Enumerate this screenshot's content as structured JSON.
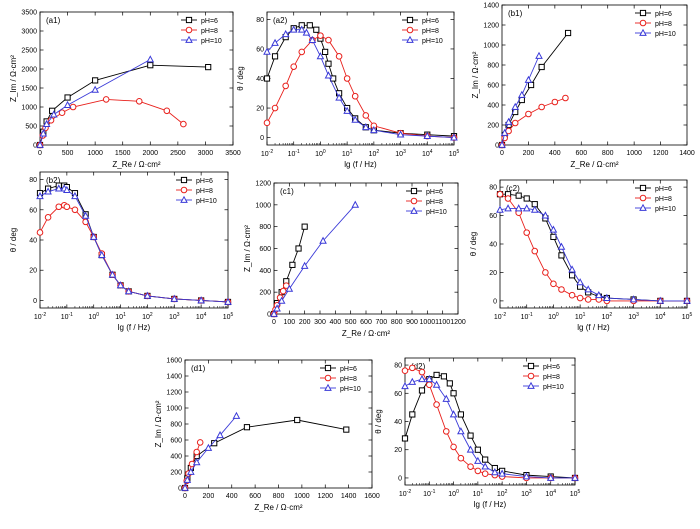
{
  "colors": {
    "pH6": "#000000",
    "pH8": "#e8201c",
    "pH10": "#3a3ad8",
    "axis": "#000000"
  },
  "legend_labels": [
    "pH=6",
    "pH=8",
    "pH=10"
  ],
  "chart_data": [
    {
      "id": "a1",
      "type": "line",
      "panel_label": "(a1)",
      "xlabel": "Z_Re / Ω·cm²",
      "ylabel": "Z_Im / Ω·cm²",
      "xlim": [
        0,
        3500
      ],
      "ylim": [
        0,
        3500
      ],
      "xticks": [
        0,
        500,
        1000,
        1500,
        2000,
        2500,
        3000,
        3500
      ],
      "yticks": [
        0,
        500,
        1000,
        1500,
        2000,
        2500,
        3000,
        3500
      ],
      "series": [
        {
          "name": "pH=6",
          "x": [
            0,
            60,
            120,
            220,
            500,
            1000,
            2000,
            3050
          ],
          "y": [
            0,
            350,
            620,
            900,
            1250,
            1700,
            2100,
            2050
          ]
        },
        {
          "name": "pH=8",
          "x": [
            0,
            50,
            100,
            200,
            400,
            600,
            1200,
            1800,
            2300,
            2600
          ],
          "y": [
            0,
            250,
            450,
            650,
            850,
            1000,
            1200,
            1150,
            900,
            550
          ]
        },
        {
          "name": "pH=10",
          "x": [
            0,
            60,
            120,
            250,
            500,
            1000,
            2000
          ],
          "y": [
            0,
            300,
            550,
            800,
            1050,
            1450,
            2250
          ]
        }
      ]
    },
    {
      "id": "a2",
      "type": "line",
      "xscale": "log",
      "panel_label": "(a2)",
      "xlabel": "lg (f / Hz)",
      "ylabel": "θ / deg",
      "xlim": [
        0.01,
        100000
      ],
      "ylim": [
        -5,
        85
      ],
      "xticks": [
        0.01,
        0.1,
        1,
        10,
        100,
        1000,
        10000,
        100000
      ],
      "yticks": [
        0,
        20,
        40,
        60,
        80
      ],
      "series": [
        {
          "name": "pH=6",
          "x": [
            0.01,
            0.02,
            0.05,
            0.1,
            0.2,
            0.4,
            0.7,
            1,
            1.5,
            2,
            3,
            5,
            10,
            20,
            50,
            100,
            1000,
            10000,
            100000
          ],
          "y": [
            40,
            55,
            68,
            74,
            76,
            76,
            73,
            67,
            58,
            50,
            40,
            30,
            20,
            13,
            7,
            5,
            3,
            2,
            1
          ]
        },
        {
          "name": "pH=8",
          "x": [
            0.01,
            0.02,
            0.05,
            0.1,
            0.2,
            0.5,
            1,
            2,
            5,
            10,
            20,
            50,
            100,
            1000,
            10000,
            100000
          ],
          "y": [
            10,
            20,
            35,
            48,
            58,
            66,
            69,
            66,
            55,
            40,
            28,
            15,
            8,
            3,
            1,
            0
          ]
        },
        {
          "name": "pH=10",
          "x": [
            0.01,
            0.02,
            0.05,
            0.1,
            0.2,
            0.3,
            0.5,
            1,
            2,
            5,
            10,
            20,
            50,
            100,
            1000,
            10000,
            100000
          ],
          "y": [
            58,
            64,
            70,
            73,
            73,
            71,
            66,
            55,
            42,
            27,
            18,
            12,
            7,
            5,
            2,
            1,
            0
          ]
        }
      ]
    },
    {
      "id": "b1",
      "type": "line",
      "panel_label": "(b1)",
      "xlabel": "Z_Re / Ω·cm²",
      "ylabel": "Z_Im / Ω·cm²",
      "xlim": [
        0,
        1400
      ],
      "ylim": [
        0,
        1400
      ],
      "xticks": [
        0,
        200,
        400,
        600,
        800,
        1000,
        1200,
        1400
      ],
      "yticks": [
        0,
        200,
        400,
        600,
        800,
        1000,
        1200,
        1400
      ],
      "series": [
        {
          "name": "pH=6",
          "x": [
            0,
            20,
            50,
            100,
            150,
            220,
            300,
            500
          ],
          "y": [
            0,
            100,
            200,
            330,
            450,
            600,
            780,
            1120
          ]
        },
        {
          "name": "pH=8",
          "x": [
            0,
            20,
            50,
            100,
            200,
            300,
            400,
            480
          ],
          "y": [
            0,
            70,
            140,
            220,
            310,
            380,
            430,
            470
          ]
        },
        {
          "name": "pH=10",
          "x": [
            0,
            20,
            50,
            100,
            150,
            200,
            280
          ],
          "y": [
            0,
            120,
            230,
            380,
            500,
            650,
            890
          ]
        }
      ]
    },
    {
      "id": "b2",
      "type": "line",
      "xscale": "log",
      "panel_label": "(b2)",
      "xlabel": "lg (f / Hz)",
      "ylabel": "θ / deg",
      "xlim": [
        0.01,
        100000
      ],
      "ylim": [
        -5,
        85
      ],
      "xticks": [
        0.01,
        0.1,
        1,
        10,
        100,
        1000,
        10000,
        100000
      ],
      "yticks": [
        0,
        20,
        40,
        60,
        80
      ],
      "series": [
        {
          "name": "pH=6",
          "x": [
            0.01,
            0.02,
            0.05,
            0.08,
            0.1,
            0.2,
            0.5,
            1,
            2,
            5,
            10,
            20,
            100,
            1000,
            10000,
            100000
          ],
          "y": [
            71,
            74,
            76,
            76,
            75,
            71,
            57,
            42,
            30,
            17,
            10,
            6,
            3,
            1,
            0,
            -1
          ]
        },
        {
          "name": "pH=8",
          "x": [
            0.01,
            0.02,
            0.05,
            0.08,
            0.1,
            0.2,
            0.5,
            1,
            2,
            5,
            10,
            20,
            100,
            1000,
            10000,
            100000
          ],
          "y": [
            45,
            55,
            62,
            63,
            62,
            60,
            52,
            42,
            31,
            17,
            10,
            6,
            3,
            1,
            0,
            -1
          ]
        },
        {
          "name": "pH=10",
          "x": [
            0.01,
            0.02,
            0.05,
            0.08,
            0.1,
            0.2,
            0.5,
            1,
            2,
            5,
            10,
            20,
            100,
            1000,
            10000,
            100000
          ],
          "y": [
            69,
            72,
            74,
            74,
            73,
            69,
            56,
            42,
            30,
            17,
            10,
            6,
            3,
            1,
            0,
            -1
          ]
        }
      ]
    },
    {
      "id": "c1",
      "type": "line",
      "panel_label": "(c1)",
      "xlabel": "Z_Re / Ω·cm²",
      "ylabel": "Z_Im / Ω·cm²",
      "xlim": [
        0,
        1200
      ],
      "ylim": [
        0,
        1200
      ],
      "xticks": [
        0,
        100,
        200,
        300,
        400,
        500,
        600,
        700,
        800,
        900,
        1000,
        1100,
        1200
      ],
      "yticks": [
        0,
        200,
        400,
        600,
        800,
        1000,
        1200
      ],
      "series": [
        {
          "name": "pH=6",
          "x": [
            0,
            20,
            50,
            80,
            120,
            160,
            200
          ],
          "y": [
            0,
            100,
            200,
            300,
            450,
            600,
            800
          ]
        },
        {
          "name": "pH=8",
          "x": [
            0,
            10,
            20,
            40,
            60,
            80
          ],
          "y": [
            0,
            40,
            80,
            150,
            210,
            260
          ]
        },
        {
          "name": "pH=10",
          "x": [
            0,
            20,
            50,
            100,
            200,
            320,
            530
          ],
          "y": [
            0,
            50,
            120,
            230,
            440,
            670,
            1000
          ]
        }
      ]
    },
    {
      "id": "c2",
      "type": "line",
      "xscale": "log",
      "panel_label": "(c2)",
      "xlabel": "lg (f / Hz)",
      "ylabel": "θ / deg",
      "xlim": [
        0.01,
        100000
      ],
      "ylim": [
        -5,
        85
      ],
      "xticks": [
        0.01,
        0.1,
        1,
        10,
        100,
        1000,
        10000,
        100000
      ],
      "yticks": [
        0,
        20,
        40,
        60,
        80
      ],
      "series": [
        {
          "name": "pH=6",
          "x": [
            0.01,
            0.02,
            0.05,
            0.1,
            0.2,
            0.5,
            1,
            2,
            5,
            10,
            20,
            50,
            100,
            1000,
            10000,
            100000
          ],
          "y": [
            75,
            75,
            74,
            72,
            68,
            58,
            45,
            32,
            18,
            10,
            6,
            3,
            2,
            1,
            0,
            0
          ]
        },
        {
          "name": "pH=8",
          "x": [
            0.01,
            0.02,
            0.05,
            0.1,
            0.2,
            0.5,
            1,
            2,
            5,
            10,
            20,
            50,
            100,
            1000,
            10000,
            100000
          ],
          "y": [
            75,
            72,
            62,
            48,
            35,
            20,
            12,
            8,
            4,
            2,
            1,
            1,
            0,
            0,
            0,
            0
          ]
        },
        {
          "name": "pH=10",
          "x": [
            0.01,
            0.02,
            0.05,
            0.1,
            0.2,
            0.5,
            1,
            2,
            5,
            10,
            20,
            50,
            100,
            1000,
            10000,
            100000
          ],
          "y": [
            64,
            65,
            65,
            65,
            64,
            60,
            50,
            38,
            22,
            13,
            8,
            4,
            2,
            1,
            0,
            0
          ]
        }
      ]
    },
    {
      "id": "d1",
      "type": "line",
      "panel_label": "(d1)",
      "xlabel": "Z_Re / Ω·cm²",
      "ylabel": "Z_Im / Ω·cm²",
      "xlim": [
        0,
        1600
      ],
      "ylim": [
        0,
        1600
      ],
      "xticks": [
        0,
        200,
        400,
        600,
        800,
        1000,
        1200,
        1400,
        1600
      ],
      "yticks": [
        0,
        200,
        400,
        600,
        800,
        1000,
        1200,
        1400,
        1600
      ],
      "series": [
        {
          "name": "pH=6",
          "x": [
            0,
            20,
            50,
            100,
            250,
            530,
            960,
            1380
          ],
          "y": [
            0,
            120,
            250,
            400,
            560,
            760,
            850,
            730
          ]
        },
        {
          "name": "pH=8",
          "x": [
            0,
            15,
            30,
            60,
            100,
            130
          ],
          "y": [
            0,
            90,
            180,
            300,
            450,
            570
          ]
        },
        {
          "name": "pH=10",
          "x": [
            0,
            20,
            50,
            100,
            200,
            300,
            440
          ],
          "y": [
            0,
            100,
            200,
            320,
            500,
            660,
            900
          ]
        }
      ]
    },
    {
      "id": "d2",
      "type": "line",
      "xscale": "log",
      "panel_label": "(d2)",
      "xlabel": "lg (f / Hz)",
      "ylabel": "θ / deg",
      "xlim": [
        0.01,
        100000
      ],
      "ylim": [
        -5,
        85
      ],
      "xticks": [
        0.01,
        0.1,
        1,
        10,
        100,
        1000,
        10000,
        100000
      ],
      "yticks": [
        0,
        20,
        40,
        60,
        80
      ],
      "series": [
        {
          "name": "pH=6",
          "x": [
            0.01,
            0.02,
            0.05,
            0.1,
            0.2,
            0.4,
            0.7,
            1,
            2,
            5,
            10,
            20,
            50,
            100,
            1000,
            10000,
            100000
          ],
          "y": [
            28,
            45,
            62,
            70,
            73,
            72,
            67,
            60,
            45,
            30,
            20,
            13,
            7,
            5,
            2,
            1,
            0
          ]
        },
        {
          "name": "pH=8",
          "x": [
            0.01,
            0.02,
            0.05,
            0.1,
            0.2,
            0.5,
            1,
            2,
            5,
            10,
            20,
            50,
            100,
            1000,
            10000,
            100000
          ],
          "y": [
            76,
            78,
            75,
            66,
            52,
            33,
            22,
            14,
            8,
            5,
            3,
            2,
            1,
            0,
            0,
            0
          ]
        },
        {
          "name": "pH=10",
          "x": [
            0.01,
            0.02,
            0.05,
            0.1,
            0.2,
            0.5,
            1,
            2,
            5,
            10,
            20,
            50,
            100,
            1000,
            10000,
            100000
          ],
          "y": [
            65,
            68,
            70,
            70,
            66,
            56,
            45,
            33,
            20,
            12,
            8,
            4,
            3,
            1,
            0,
            0
          ]
        }
      ]
    }
  ]
}
